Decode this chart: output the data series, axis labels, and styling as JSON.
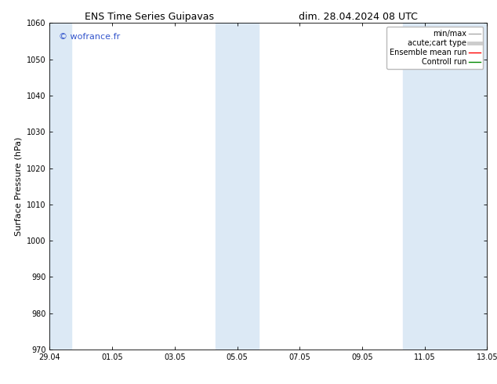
{
  "title_left": "ENS Time Series Guipavas",
  "title_right": "dim. 28.04.2024 08 UTC",
  "ylabel": "Surface Pressure (hPa)",
  "ylim": [
    970,
    1060
  ],
  "yticks": [
    970,
    980,
    990,
    1000,
    1010,
    1020,
    1030,
    1040,
    1050,
    1060
  ],
  "xtick_labels": [
    "29.04",
    "01.05",
    "03.05",
    "05.05",
    "07.05",
    "09.05",
    "11.05",
    "13.05"
  ],
  "xtick_positions": [
    0,
    2,
    4,
    6,
    8,
    10,
    12,
    14
  ],
  "x_total": 14,
  "watermark": "© wofrance.fr",
  "watermark_color": "#3355cc",
  "bg_color": "#ffffff",
  "plot_bg_color": "#ffffff",
  "shaded_bands": [
    {
      "x_start": 0.0,
      "x_end": 0.7
    },
    {
      "x_start": 5.3,
      "x_end": 6.7
    },
    {
      "x_start": 11.3,
      "x_end": 14.0
    }
  ],
  "shaded_color": "#dce9f5",
  "legend_items": [
    {
      "label": "min/max",
      "color": "#aaaaaa",
      "lw": 1.0,
      "linestyle": "-"
    },
    {
      "label": "acute;cart type",
      "color": "#cccccc",
      "lw": 3.5,
      "linestyle": "-"
    },
    {
      "label": "Ensemble mean run",
      "color": "#ff0000",
      "lw": 1.0,
      "linestyle": "-"
    },
    {
      "label": "Controll run",
      "color": "#008800",
      "lw": 1.0,
      "linestyle": "-"
    }
  ],
  "title_fontsize": 9,
  "tick_fontsize": 7,
  "ylabel_fontsize": 8,
  "watermark_fontsize": 8,
  "legend_fontsize": 7
}
